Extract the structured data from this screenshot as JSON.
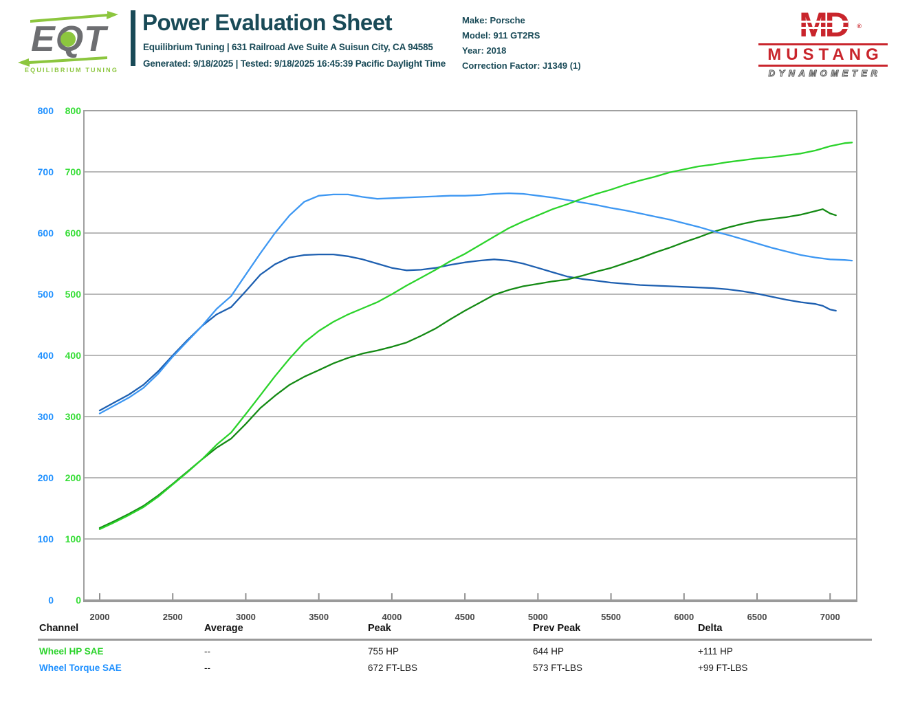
{
  "header": {
    "title": "Power Evaluation Sheet",
    "address": "Equilibrium Tuning | 631 Railroad Ave Suite A Suisun City, CA 94585",
    "generated": "Generated: 9/18/2025 | Tested: 9/18/2025 16:45:39 Pacific Daylight Time"
  },
  "vehicle": {
    "make": "Make: Porsche",
    "model": "Model: 911 GT2RS",
    "year": "Year: 2018",
    "correction": "Correction Factor: J1349 (1)"
  },
  "logos": {
    "eqt": {
      "text": "EQT",
      "tagline": "EQUILIBRIUM TUNING",
      "gray": "#6d6e71",
      "green": "#8cc63e"
    },
    "mustang": {
      "monogram": "MD",
      "reg": "®",
      "name": "MUSTANG",
      "sub": "DYNAMOMETER",
      "red": "#c9252c"
    }
  },
  "colors": {
    "teal": "#194a57",
    "axis_blue": "#1e90ff",
    "axis_green": "#35dd35",
    "grid": "#b8b8b8",
    "border": "#a0a0a0"
  },
  "chart_data": {
    "type": "line",
    "xlabel": "",
    "ylabel": "",
    "xlim": [
      1890,
      7185
    ],
    "ylim": [
      0,
      800
    ],
    "grid": "horizontal",
    "legend": "none (table below serves as legend)",
    "xticks": [
      2000,
      2500,
      3000,
      3500,
      4000,
      4500,
      5000,
      5500,
      6000,
      6500,
      7000
    ],
    "y_axes": [
      {
        "name": "Wheel Torque SAE axis (FT-LBS)",
        "color": "#1e90ff",
        "ticks": [
          800,
          700,
          600,
          500,
          400,
          300,
          200,
          100,
          0
        ]
      },
      {
        "name": "Wheel HP SAE axis (HP)",
        "color": "#35dd35",
        "ticks": [
          800,
          700,
          600,
          500,
          400,
          300,
          200,
          100,
          0
        ]
      }
    ],
    "series": [
      {
        "name": "Wheel Torque SAE (previous)",
        "unit": "FT-LBS",
        "color": "#1d5fb0",
        "points": [
          [
            2000,
            310
          ],
          [
            2100,
            323
          ],
          [
            2200,
            336
          ],
          [
            2300,
            352
          ],
          [
            2400,
            374
          ],
          [
            2500,
            400
          ],
          [
            2600,
            425
          ],
          [
            2700,
            448
          ],
          [
            2800,
            467
          ],
          [
            2900,
            479
          ],
          [
            3000,
            505
          ],
          [
            3100,
            532
          ],
          [
            3200,
            549
          ],
          [
            3300,
            560
          ],
          [
            3400,
            564
          ],
          [
            3500,
            565
          ],
          [
            3600,
            565
          ],
          [
            3700,
            562
          ],
          [
            3800,
            557
          ],
          [
            3900,
            550
          ],
          [
            4000,
            543
          ],
          [
            4100,
            539
          ],
          [
            4200,
            540
          ],
          [
            4300,
            543
          ],
          [
            4400,
            548
          ],
          [
            4500,
            552
          ],
          [
            4600,
            555
          ],
          [
            4700,
            557
          ],
          [
            4800,
            555
          ],
          [
            4900,
            550
          ],
          [
            5000,
            543
          ],
          [
            5100,
            536
          ],
          [
            5200,
            529
          ],
          [
            5300,
            525
          ],
          [
            5400,
            522
          ],
          [
            5500,
            519
          ],
          [
            5600,
            517
          ],
          [
            5700,
            515
          ],
          [
            5800,
            514
          ],
          [
            5900,
            513
          ],
          [
            6000,
            512
          ],
          [
            6100,
            511
          ],
          [
            6200,
            510
          ],
          [
            6300,
            508
          ],
          [
            6400,
            505
          ],
          [
            6500,
            501
          ],
          [
            6600,
            496
          ],
          [
            6700,
            491
          ],
          [
            6800,
            487
          ],
          [
            6900,
            484
          ],
          [
            6950,
            481
          ],
          [
            7000,
            475
          ],
          [
            7040,
            473
          ]
        ]
      },
      {
        "name": "Wheel HP SAE (previous)",
        "unit": "HP",
        "color": "#148a14",
        "points": [
          [
            2000,
            118
          ],
          [
            2100,
            129
          ],
          [
            2200,
            141
          ],
          [
            2300,
            154
          ],
          [
            2400,
            171
          ],
          [
            2500,
            190
          ],
          [
            2600,
            210
          ],
          [
            2700,
            230
          ],
          [
            2800,
            249
          ],
          [
            2900,
            264
          ],
          [
            3000,
            288
          ],
          [
            3100,
            314
          ],
          [
            3200,
            334
          ],
          [
            3300,
            352
          ],
          [
            3400,
            365
          ],
          [
            3500,
            376
          ],
          [
            3600,
            387
          ],
          [
            3700,
            396
          ],
          [
            3800,
            403
          ],
          [
            3900,
            408
          ],
          [
            4000,
            414
          ],
          [
            4100,
            421
          ],
          [
            4200,
            432
          ],
          [
            4300,
            444
          ],
          [
            4400,
            459
          ],
          [
            4500,
            473
          ],
          [
            4600,
            486
          ],
          [
            4700,
            499
          ],
          [
            4800,
            507
          ],
          [
            4900,
            513
          ],
          [
            5000,
            517
          ],
          [
            5100,
            521
          ],
          [
            5200,
            524
          ],
          [
            5300,
            530
          ],
          [
            5400,
            537
          ],
          [
            5500,
            543
          ],
          [
            5600,
            551
          ],
          [
            5700,
            559
          ],
          [
            5800,
            568
          ],
          [
            5900,
            576
          ],
          [
            6000,
            585
          ],
          [
            6100,
            593
          ],
          [
            6200,
            602
          ],
          [
            6300,
            609
          ],
          [
            6400,
            615
          ],
          [
            6500,
            620
          ],
          [
            6600,
            623
          ],
          [
            6700,
            626
          ],
          [
            6800,
            630
          ],
          [
            6900,
            636
          ],
          [
            6950,
            639
          ],
          [
            7000,
            632
          ],
          [
            7040,
            629
          ]
        ]
      },
      {
        "name": "Wheel Torque SAE",
        "unit": "FT-LBS",
        "color": "#3d97f2",
        "points": [
          [
            2000,
            305
          ],
          [
            2100,
            318
          ],
          [
            2200,
            331
          ],
          [
            2300,
            347
          ],
          [
            2400,
            370
          ],
          [
            2500,
            398
          ],
          [
            2600,
            423
          ],
          [
            2700,
            448
          ],
          [
            2800,
            476
          ],
          [
            2900,
            497
          ],
          [
            3000,
            532
          ],
          [
            3100,
            567
          ],
          [
            3200,
            600
          ],
          [
            3300,
            629
          ],
          [
            3400,
            651
          ],
          [
            3500,
            661
          ],
          [
            3600,
            663
          ],
          [
            3700,
            663
          ],
          [
            3800,
            659
          ],
          [
            3900,
            656
          ],
          [
            4000,
            657
          ],
          [
            4100,
            658
          ],
          [
            4200,
            659
          ],
          [
            4300,
            660
          ],
          [
            4400,
            661
          ],
          [
            4500,
            661
          ],
          [
            4600,
            662
          ],
          [
            4700,
            664
          ],
          [
            4800,
            665
          ],
          [
            4900,
            664
          ],
          [
            5000,
            661
          ],
          [
            5100,
            658
          ],
          [
            5200,
            654
          ],
          [
            5300,
            650
          ],
          [
            5400,
            646
          ],
          [
            5500,
            641
          ],
          [
            5600,
            637
          ],
          [
            5700,
            632
          ],
          [
            5800,
            627
          ],
          [
            5900,
            622
          ],
          [
            6000,
            616
          ],
          [
            6100,
            610
          ],
          [
            6200,
            603
          ],
          [
            6300,
            597
          ],
          [
            6400,
            590
          ],
          [
            6500,
            583
          ],
          [
            6600,
            576
          ],
          [
            6700,
            570
          ],
          [
            6800,
            564
          ],
          [
            6900,
            560
          ],
          [
            7000,
            557
          ],
          [
            7100,
            556
          ],
          [
            7150,
            555
          ]
        ]
      },
      {
        "name": "Wheel HP SAE",
        "unit": "HP",
        "color": "#2bd32b",
        "points": [
          [
            2000,
            116
          ],
          [
            2100,
            127
          ],
          [
            2200,
            139
          ],
          [
            2300,
            152
          ],
          [
            2400,
            169
          ],
          [
            2500,
            189
          ],
          [
            2600,
            209
          ],
          [
            2700,
            230
          ],
          [
            2800,
            254
          ],
          [
            2900,
            274
          ],
          [
            3000,
            304
          ],
          [
            3100,
            335
          ],
          [
            3200,
            366
          ],
          [
            3300,
            395
          ],
          [
            3400,
            421
          ],
          [
            3500,
            440
          ],
          [
            3600,
            455
          ],
          [
            3700,
            467
          ],
          [
            3800,
            477
          ],
          [
            3900,
            487
          ],
          [
            4000,
            500
          ],
          [
            4100,
            514
          ],
          [
            4200,
            527
          ],
          [
            4300,
            540
          ],
          [
            4400,
            554
          ],
          [
            4500,
            566
          ],
          [
            4600,
            580
          ],
          [
            4700,
            594
          ],
          [
            4800,
            608
          ],
          [
            4900,
            619
          ],
          [
            5000,
            629
          ],
          [
            5100,
            639
          ],
          [
            5200,
            647
          ],
          [
            5300,
            656
          ],
          [
            5400,
            664
          ],
          [
            5500,
            671
          ],
          [
            5600,
            679
          ],
          [
            5700,
            686
          ],
          [
            5800,
            692
          ],
          [
            5900,
            699
          ],
          [
            6000,
            704
          ],
          [
            6100,
            709
          ],
          [
            6200,
            712
          ],
          [
            6300,
            716
          ],
          [
            6400,
            719
          ],
          [
            6500,
            722
          ],
          [
            6600,
            724
          ],
          [
            6700,
            727
          ],
          [
            6800,
            730
          ],
          [
            6900,
            735
          ],
          [
            7000,
            742
          ],
          [
            7100,
            747
          ],
          [
            7150,
            748
          ]
        ]
      }
    ]
  },
  "table": {
    "headers": [
      "Channel",
      "Average",
      "Peak",
      "Prev Peak",
      "Delta"
    ],
    "rows": [
      {
        "channel": "Wheel HP SAE",
        "color": "#2bd32b",
        "average": "--",
        "peak": "755 HP",
        "prev_peak": "644 HP",
        "delta": "+111 HP"
      },
      {
        "channel": "Wheel Torque SAE",
        "color": "#1e90ff",
        "average": "--",
        "peak": "672 FT-LBS",
        "prev_peak": "573 FT-LBS",
        "delta": "+99 FT-LBS"
      }
    ]
  }
}
